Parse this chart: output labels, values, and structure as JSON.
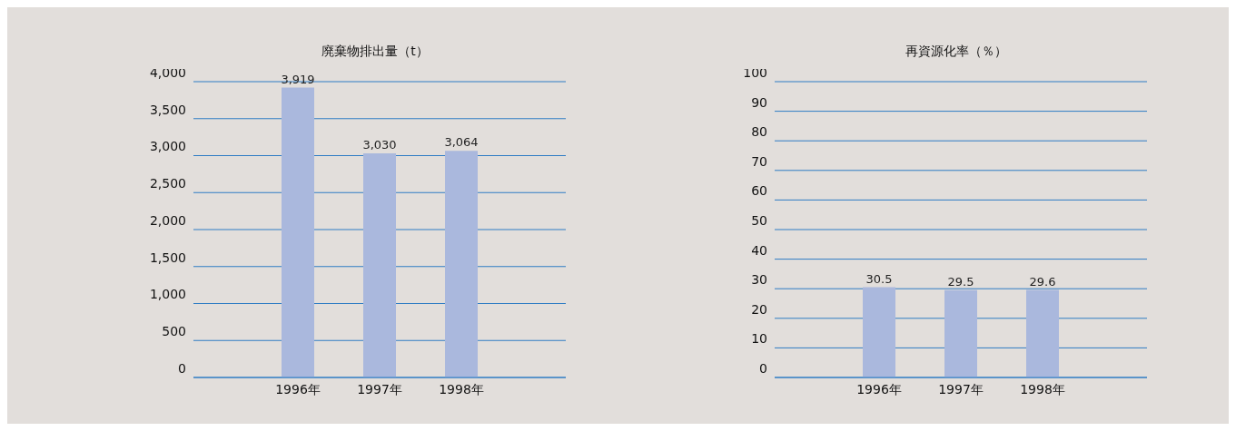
{
  "chart_data": [
    {
      "type": "bar",
      "title": "廃棄物排出量（t）",
      "categories": [
        "1996年",
        "1997年",
        "1998年"
      ],
      "values": [
        3919,
        3030,
        3064
      ],
      "color": "#aab8dd",
      "value_labels": [
        "3,919",
        "3,030",
        "3,064"
      ],
      "ylim": [
        0,
        4000
      ],
      "yticks": [
        0,
        {
          "value": 500,
          "label": "500"
        },
        {
          "value": 1000,
          "label": "1,000"
        },
        {
          "value": 1500,
          "label": "1,500"
        },
        {
          "value": 2000,
          "label": "2,000"
        },
        {
          "value": 2500,
          "label": "2,500"
        },
        {
          "value": 3000,
          "label": "3,000"
        },
        {
          "value": 3500,
          "label": "3,500"
        },
        {
          "value": 4000,
          "label": "4,000"
        }
      ],
      "grid": "y"
    },
    {
      "type": "bar",
      "title": "再資源化率（％）",
      "categories": [
        "1996年",
        "1997年",
        "1998年"
      ],
      "values": [
        30.5,
        29.5,
        29.6
      ],
      "color": "#aab8dd",
      "data_labels": true,
      "ylim": [
        0,
        100
      ],
      "yticks": [
        0,
        10,
        20,
        30,
        40,
        50,
        60,
        70,
        80,
        90,
        100
      ],
      "grid": "y"
    }
  ]
}
